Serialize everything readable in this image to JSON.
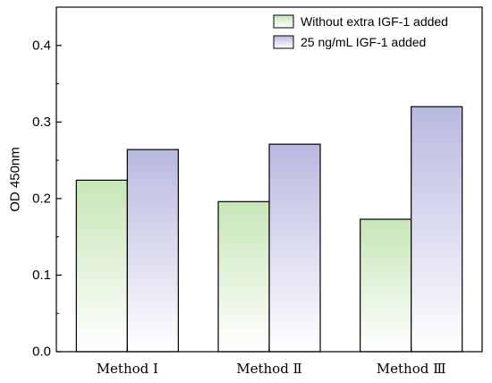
{
  "chart_data": {
    "type": "bar",
    "categories": [
      "Method Ⅰ",
      "Method Ⅱ",
      "Method Ⅲ"
    ],
    "series": [
      {
        "name": "Without extra IGF-1 added",
        "values": [
          0.224,
          0.196,
          0.173
        ],
        "color": "#c7e6b7"
      },
      {
        "name": "25 ng/mL IGF-1 added",
        "values": [
          0.264,
          0.271,
          0.32
        ],
        "color": "#b9b9e0"
      }
    ],
    "ylabel": "OD 450nm",
    "ylim": [
      0.0,
      0.45
    ],
    "yticks": [
      "0.0",
      "0.1",
      "0.2",
      "0.3",
      "0.4"
    ],
    "ytick_values": [
      0.0,
      0.1,
      0.2,
      0.3,
      0.4
    ],
    "legend_position": "top-right",
    "grid": false
  }
}
